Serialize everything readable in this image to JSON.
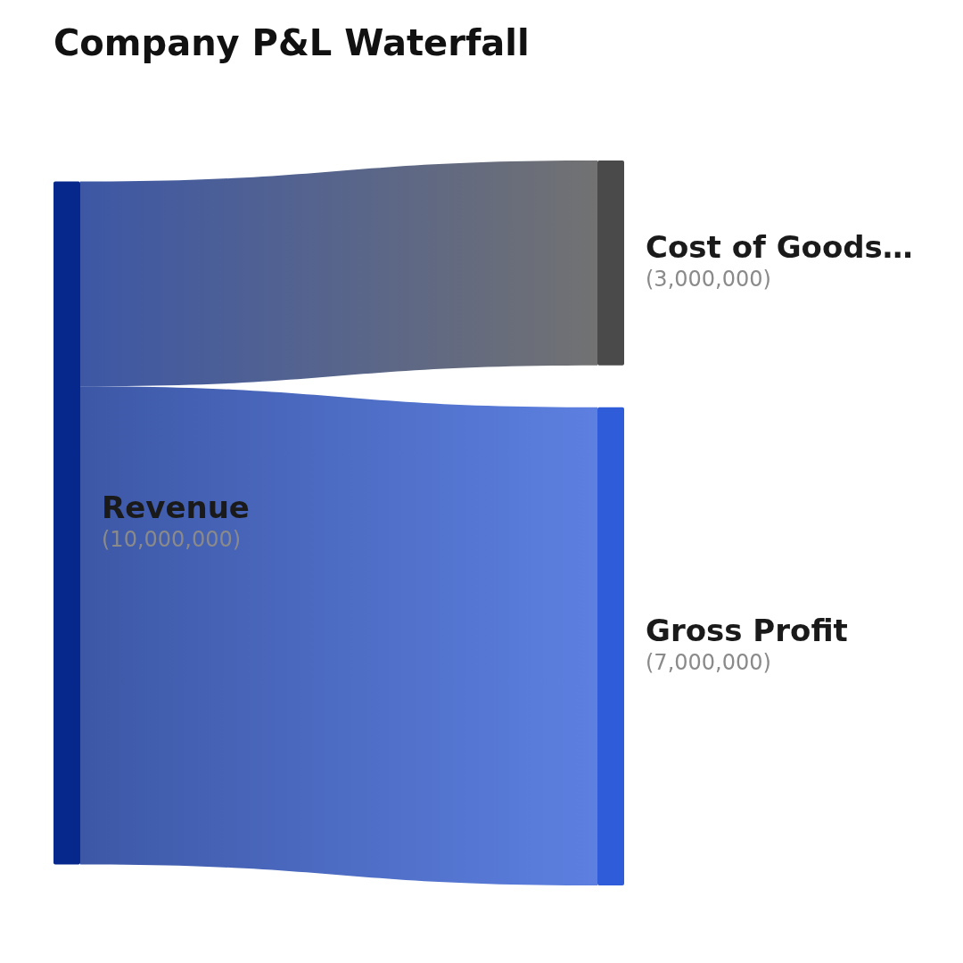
{
  "chart_data": {
    "type": "other",
    "title": "Company P&L Waterfall",
    "categories": [
      "Revenue",
      "Cost of Goods…",
      "Gross Profit"
    ],
    "values": [
      10000000,
      3000000,
      7000000
    ],
    "value_labels": [
      "(10,000,000)",
      "(3,000,000)",
      "(7,000,000)"
    ],
    "colors": [
      "#06288c",
      "#4a4a4a",
      "#2f5cd8"
    ]
  }
}
